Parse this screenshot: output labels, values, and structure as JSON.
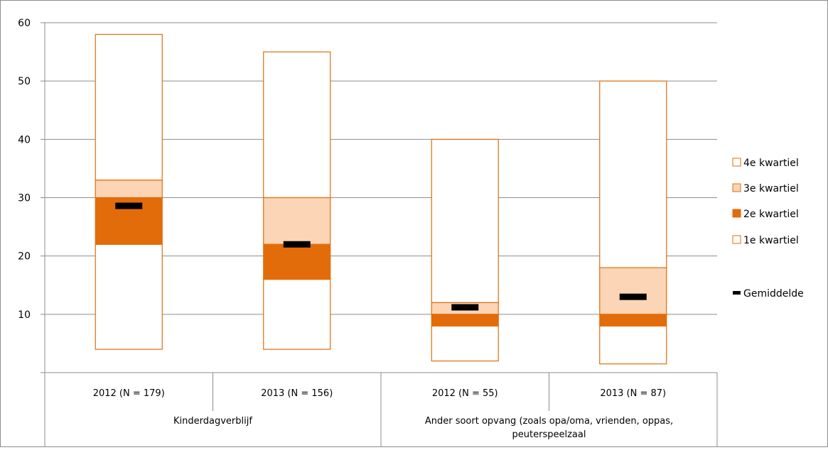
{
  "chart_data": {
    "type": "boxplot",
    "title": "",
    "xlabel": "",
    "ylabel": "",
    "ylim": [
      0,
      60
    ],
    "yticks": [
      10,
      20,
      30,
      40,
      50,
      60
    ],
    "grid": true,
    "legend_position": "right",
    "groups": [
      {
        "label": "Kinderdagverblijf",
        "categories": [
          "2012 (N = 179)",
          "2013 (N = 156)"
        ]
      },
      {
        "label": "Ander soort opvang (zoals opa/oma, vrienden, oppas, peuterspeelzaal",
        "categories": [
          "2012 (N = 55)",
          "2013 (N = 87)"
        ]
      }
    ],
    "categories": [
      "2012 (N = 179)",
      "2013 (N = 156)",
      "2012 (N = 55)",
      "2013 (N = 87)"
    ],
    "boxes": [
      {
        "min": 4,
        "q1": 22,
        "median": 30,
        "q3": 33,
        "max": 58,
        "mean": 28.6
      },
      {
        "min": 4,
        "q1": 16,
        "median": 22,
        "q3": 30,
        "max": 55,
        "mean": 22
      },
      {
        "min": 2,
        "q1": 8,
        "median": 10,
        "q3": 12,
        "max": 40,
        "mean": 11.2
      },
      {
        "min": 1.5,
        "q1": 8,
        "median": 10,
        "q3": 18,
        "max": 50,
        "mean": 13
      }
    ],
    "legend": [
      {
        "key": "q4",
        "label": "4e kwartiel",
        "color": "#ffffff",
        "border": "#e36c0a"
      },
      {
        "key": "q3",
        "label": "3e kwartiel",
        "color": "#fbd5b5",
        "border": "#e36c0a"
      },
      {
        "key": "q2",
        "label": "2e kwartiel",
        "color": "#e36c0a",
        "border": "#e36c0a"
      },
      {
        "key": "q1",
        "label": "1e kwartiel",
        "color": "#ffffff",
        "border": "#e36c0a"
      },
      {
        "key": "mean",
        "label": "Gemiddelde",
        "color": "#000000"
      }
    ]
  }
}
